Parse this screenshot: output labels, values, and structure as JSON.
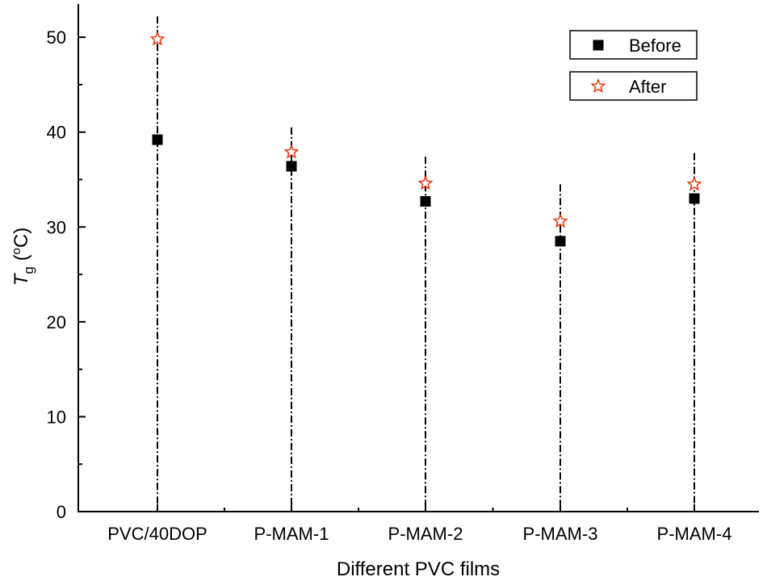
{
  "chart_data": {
    "type": "scatter",
    "title": "",
    "xlabel": "Different PVC films",
    "ylabel": {
      "symbol": "T",
      "subscript": "g",
      "unit_open": " (",
      "degree": "o",
      "unit_close": "C)"
    },
    "ylim": [
      0,
      53.5
    ],
    "yticks": [
      0,
      10,
      20,
      30,
      40,
      50
    ],
    "categories": [
      "PVC/40DOP",
      "P-MAM-1",
      "P-MAM-2",
      "P-MAM-3",
      "P-MAM-4"
    ],
    "series": [
      {
        "name": "Before",
        "marker": "filled-square",
        "color": "#000000",
        "values": [
          39.2,
          36.4,
          32.7,
          28.5,
          33.0
        ]
      },
      {
        "name": "After",
        "marker": "open-star",
        "color": "#e8340c",
        "values": [
          49.8,
          37.9,
          34.6,
          30.6,
          34.5
        ]
      }
    ],
    "drop_lines": {
      "style": "dash-dot",
      "top_values": [
        52.2,
        40.5,
        37.4,
        34.5,
        37.8
      ]
    },
    "legend_position": "top-right",
    "grid": false
  }
}
